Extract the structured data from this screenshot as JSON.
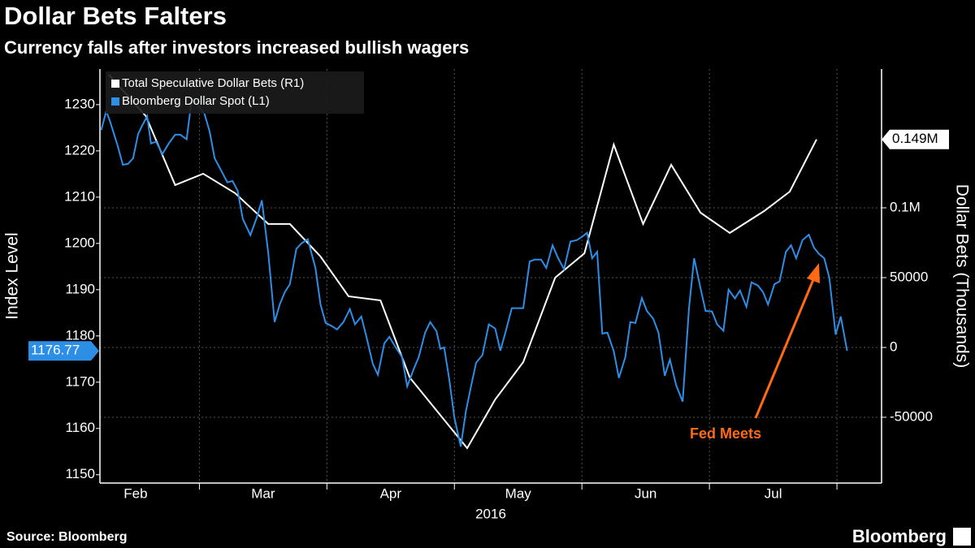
{
  "chart_data": {
    "type": "line",
    "title": "Dollar Bets Falters",
    "subtitle": "Currency falls after investors increased bullish wagers",
    "ylabel": "Index Level",
    "y2label": "Dollar Bets (Thousands)",
    "xlabel": "2016",
    "annotation": "Fed Meets",
    "source": "Source: Bloomberg",
    "brand": "Bloomberg",
    "xlim": [
      2.22,
      8.35
    ],
    "xticks": [
      {
        "value": 2.5,
        "label": "Feb"
      },
      {
        "value": 3.5,
        "label": "Mar"
      },
      {
        "value": 4.5,
        "label": "Apr"
      },
      {
        "value": 5.5,
        "label": "May"
      },
      {
        "value": 6.5,
        "label": "Jun"
      },
      {
        "value": 7.5,
        "label": "Jul"
      }
    ],
    "xgridlines": [
      3,
      4,
      5,
      6,
      7,
      8
    ],
    "ylim": [
      1148.2,
      1237.7
    ],
    "yticks": [
      1150,
      1160,
      1170,
      1180,
      1190,
      1200,
      1210,
      1220,
      1230
    ],
    "y2lim": [
      -97100,
      199400
    ],
    "y2ticks": [
      -50000,
      0,
      50000,
      {
        "value": 100000,
        "label": "0.1M"
      }
    ],
    "grid": true,
    "legend": "top-left",
    "series": [
      {
        "name": "Total Speculative Dollar Bets (R1)",
        "color": "#ffffff",
        "axis": "y2",
        "x": [
          2.29,
          2.58,
          2.81,
          3.03,
          3.28,
          3.54,
          3.71,
          3.95,
          4.17,
          4.42,
          4.65,
          5.1,
          5.32,
          5.54,
          5.79,
          6.02,
          6.25,
          6.48,
          6.7,
          6.93,
          7.16,
          7.43,
          7.63,
          7.84
        ],
        "values": [
          195300,
          165700,
          116300,
          124400,
          110500,
          88400,
          88400,
          65100,
          36600,
          33700,
          -21500,
          -72100,
          -37200,
          -10500,
          50000,
          67400,
          145300,
          88400,
          130800,
          96500,
          82000,
          97700,
          111600,
          149000
        ],
        "value_labels": [
          null,
          null,
          null,
          null,
          null,
          null,
          null,
          null,
          null,
          null,
          null,
          null,
          null,
          null,
          null,
          null,
          null,
          null,
          null,
          null,
          null,
          null,
          null,
          "0.149M"
        ]
      },
      {
        "name": "Bloomberg Dollar Spot  (L1)",
        "color": "#2d8ee6",
        "axis": "y",
        "x": [
          2.23,
          2.27,
          2.3,
          2.36,
          2.4,
          2.44,
          2.48,
          2.52,
          2.55,
          2.59,
          2.62,
          2.66,
          2.71,
          2.76,
          2.81,
          2.85,
          2.9,
          2.94,
          2.99,
          3.04,
          3.08,
          3.12,
          3.17,
          3.22,
          3.26,
          3.3,
          3.34,
          3.4,
          3.45,
          3.49,
          3.54,
          3.59,
          3.63,
          3.67,
          3.71,
          3.76,
          3.8,
          3.85,
          3.91,
          3.95,
          3.99,
          4.04,
          4.08,
          4.13,
          4.18,
          4.22,
          4.27,
          4.31,
          4.36,
          4.4,
          4.45,
          4.49,
          4.54,
          4.59,
          4.63,
          4.68,
          4.72,
          4.77,
          4.81,
          4.86,
          4.89,
          4.92,
          4.96,
          5.0,
          5.05,
          5.09,
          5.13,
          5.17,
          5.22,
          5.27,
          5.32,
          5.36,
          5.4,
          5.45,
          5.49,
          5.54,
          5.59,
          5.63,
          5.68,
          5.72,
          5.77,
          5.81,
          5.86,
          5.91,
          5.96,
          6.0,
          6.04,
          6.08,
          6.12,
          6.16,
          6.2,
          6.25,
          6.29,
          6.34,
          6.38,
          6.42,
          6.47,
          6.51,
          6.56,
          6.6,
          6.65,
          6.69,
          6.74,
          6.79,
          6.84,
          6.88,
          6.93,
          6.97,
          7.02,
          7.06,
          7.11,
          7.15,
          7.2,
          7.24,
          7.29,
          7.33,
          7.38,
          7.42,
          7.46,
          7.51,
          7.55,
          7.6,
          7.64,
          7.68,
          7.73,
          7.78,
          7.82,
          7.86,
          7.9,
          7.94,
          7.99,
          8.03,
          8.08
        ],
        "values": [
          1224.5,
          1228.6,
          1226.3,
          1221,
          1217,
          1217.2,
          1218.4,
          1223.7,
          1225.4,
          1227.5,
          1221.6,
          1222,
          1219.3,
          1221.6,
          1223.5,
          1223.5,
          1222.5,
          1231.2,
          1229.8,
          1228,
          1224.2,
          1218.4,
          1215.8,
          1213.2,
          1213.5,
          1211.4,
          1205.3,
          1201.8,
          1205.6,
          1209.3,
          1197.9,
          1183,
          1186.8,
          1189.5,
          1191.2,
          1198.8,
          1200,
          1200.9,
          1194.7,
          1186.8,
          1182.8,
          1182.1,
          1181.4,
          1183,
          1185.8,
          1182.5,
          1184.2,
          1179.8,
          1174,
          1171.6,
          1178.4,
          1179.8,
          1177.5,
          1175.4,
          1169.1,
          1172.8,
          1175.4,
          1180.7,
          1183,
          1181,
          1177.2,
          1177.5,
          1170.5,
          1162.3,
          1156.1,
          1163.7,
          1169.1,
          1174.2,
          1175.9,
          1182.5,
          1181.6,
          1176.8,
          1180.7,
          1186,
          1186,
          1186,
          1196.1,
          1196.5,
          1196.5,
          1194.7,
          1199.6,
          1197,
          1194.4,
          1200.4,
          1200.7,
          1201.4,
          1202.3,
          1196.8,
          1198.2,
          1180.5,
          1180.7,
          1176.7,
          1170.9,
          1175.4,
          1183,
          1182.8,
          1188.2,
          1185.4,
          1183.7,
          1180.7,
          1171.4,
          1174.9,
          1169.3,
          1165.8,
          1186,
          1196.8,
          1190.3,
          1185.4,
          1185.3,
          1182.5,
          1181.1,
          1190,
          1188.1,
          1189.8,
          1186.3,
          1191.6,
          1190.9,
          1189.5,
          1186.8,
          1191.2,
          1191.8,
          1198.2,
          1199.6,
          1196.8,
          1200.7,
          1201.9,
          1199.1,
          1197.7,
          1196.8,
          1192.6,
          1180.3,
          1184.2,
          1176.77
        ]
      }
    ]
  }
}
